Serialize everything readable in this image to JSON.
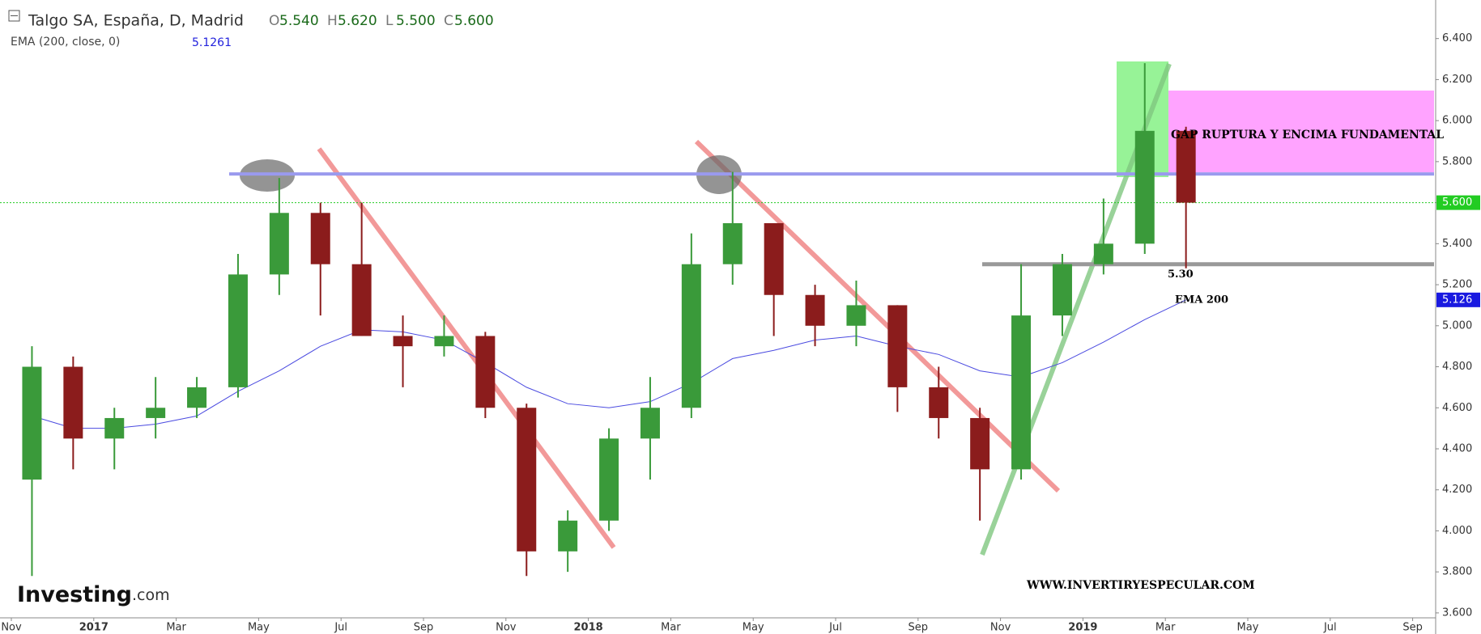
{
  "chart_data": {
    "type": "candlestick",
    "title": "Talgo SA, España, D, Madrid",
    "ohlc_header": [
      {
        "key": "O",
        "value": "5.540"
      },
      {
        "key": "H",
        "value": "5.620"
      },
      {
        "key": "L",
        "value": "5.500"
      },
      {
        "key": "C",
        "value": "5.600"
      }
    ],
    "indicator": {
      "name": "EMA (200, close, 0)",
      "value": "5.1261"
    },
    "x": [
      "2016-11",
      "2016-12",
      "2017-01",
      "2017-02",
      "2017-03",
      "2017-04",
      "2017-05",
      "2017-06",
      "2017-07",
      "2017-08",
      "2017-09",
      "2017-10",
      "2017-11",
      "2017-12",
      "2018-01",
      "2018-02",
      "2018-03",
      "2018-04",
      "2018-05",
      "2018-06",
      "2018-07",
      "2018-08",
      "2018-09",
      "2018-10",
      "2018-11",
      "2018-12",
      "2019-01",
      "2019-02",
      "2019-03"
    ],
    "open": [
      4.25,
      4.8,
      4.45,
      4.55,
      4.6,
      4.7,
      5.25,
      5.55,
      5.3,
      4.95,
      4.9,
      4.95,
      4.6,
      3.9,
      4.05,
      4.45,
      4.6,
      5.3,
      5.5,
      5.15,
      5.0,
      5.1,
      4.7,
      4.55,
      4.3,
      5.05,
      5.3,
      5.4,
      5.95
    ],
    "high": [
      4.9,
      4.85,
      4.6,
      4.75,
      4.75,
      5.35,
      5.72,
      5.6,
      5.6,
      5.05,
      5.05,
      4.97,
      4.62,
      4.1,
      4.5,
      4.75,
      5.45,
      5.75,
      5.5,
      5.2,
      5.22,
      5.1,
      4.8,
      4.6,
      5.3,
      5.35,
      5.62,
      6.28,
      5.97
    ],
    "low": [
      3.78,
      4.3,
      4.3,
      4.45,
      4.55,
      4.65,
      5.15,
      5.05,
      4.95,
      4.7,
      4.85,
      4.55,
      3.78,
      3.8,
      4.0,
      4.25,
      4.55,
      5.2,
      4.95,
      4.9,
      4.9,
      4.58,
      4.45,
      4.05,
      4.25,
      4.95,
      5.25,
      5.35,
      5.28
    ],
    "close": [
      4.8,
      4.45,
      4.55,
      4.6,
      4.7,
      5.25,
      5.55,
      5.3,
      4.95,
      4.9,
      4.95,
      4.6,
      3.9,
      4.05,
      4.45,
      4.6,
      5.3,
      5.5,
      5.15,
      5.0,
      5.1,
      4.7,
      4.55,
      4.3,
      5.05,
      5.3,
      5.4,
      5.95,
      5.6
    ],
    "up_color": "#3a9a3a",
    "down_color": "#8b1c1c",
    "ema": {
      "name": "EMA 200",
      "color": "#4a4ae0",
      "values": [
        4.56,
        4.5,
        4.5,
        4.52,
        4.56,
        4.68,
        4.78,
        4.9,
        4.98,
        4.97,
        4.93,
        4.82,
        4.7,
        4.62,
        4.6,
        4.63,
        4.72,
        4.84,
        4.88,
        4.93,
        4.95,
        4.9,
        4.86,
        4.78,
        4.75,
        4.82,
        4.92,
        5.03,
        5.126
      ]
    },
    "ema_label": {
      "value": 5.126,
      "label": "5.126"
    },
    "levels": [
      {
        "value": 5.74,
        "color": "#9a9aee"
      },
      {
        "value": 5.3,
        "label": "5.30",
        "color": "#999999"
      },
      {
        "value": 5.6,
        "label": "5.600",
        "color": "#22cc22"
      }
    ],
    "ylim": [
      3.576,
      6.588
    ],
    "yticks": [
      {
        "value": 3.6,
        "label": "3.600"
      },
      {
        "value": 3.8,
        "label": "3.800"
      },
      {
        "value": 4.0,
        "label": "4.000"
      },
      {
        "value": 4.2,
        "label": "4.200"
      },
      {
        "value": 4.4,
        "label": "4.400"
      },
      {
        "value": 4.6,
        "label": "4.600"
      },
      {
        "value": 4.8,
        "label": "4.800"
      },
      {
        "value": 5.0,
        "label": "5.000"
      },
      {
        "value": 5.2,
        "label": "5.200"
      },
      {
        "value": 5.4,
        "label": "5.400"
      },
      {
        "value": 5.6,
        "label": "5.600"
      },
      {
        "value": 5.8,
        "label": "5.800"
      },
      {
        "value": 6.0,
        "label": "6.000"
      },
      {
        "value": 6.2,
        "label": "6.200"
      },
      {
        "value": 6.4,
        "label": "6.400"
      }
    ],
    "xticks": [
      {
        "value": "2016-11",
        "label": "Nov"
      },
      {
        "value": "2017-01",
        "label": "2017"
      },
      {
        "value": "2017-03",
        "label": "Mar"
      },
      {
        "value": "2017-05",
        "label": "May"
      },
      {
        "value": "2017-07",
        "label": "Jul"
      },
      {
        "value": "2017-09",
        "label": "Sep"
      },
      {
        "value": "2017-11",
        "label": "Nov"
      },
      {
        "value": "2018-01",
        "label": "2018"
      },
      {
        "value": "2018-03",
        "label": "Mar"
      },
      {
        "value": "2018-05",
        "label": "May"
      },
      {
        "value": "2018-07",
        "label": "Jul"
      },
      {
        "value": "2018-09",
        "label": "Sep"
      },
      {
        "value": "2018-11",
        "label": "Nov"
      },
      {
        "value": "2019-01",
        "label": "2019"
      },
      {
        "value": "2019-03",
        "label": "Mar"
      },
      {
        "value": "2019-05",
        "label": "May"
      },
      {
        "value": "2019-07",
        "label": "Jul"
      },
      {
        "value": "2019-09",
        "label": "Sep"
      }
    ],
    "annotations": [
      "GAP RUPTURA Y ENCIMA FUNDAMENTAL",
      "WWW.INVERTIRYESPECULAR.COM"
    ],
    "logo": {
      "main": "Investing",
      "suffix": ".com"
    }
  }
}
